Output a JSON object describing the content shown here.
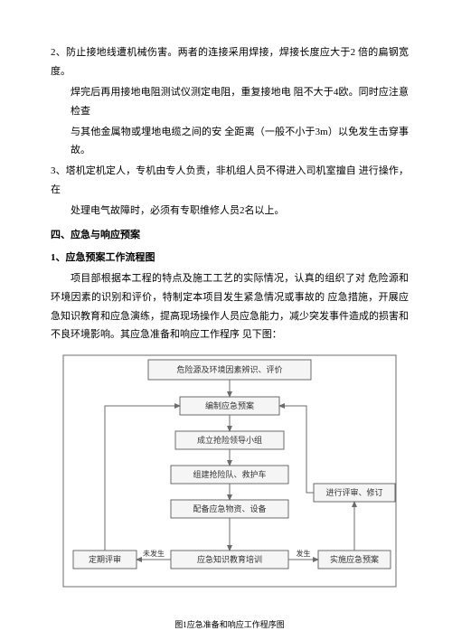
{
  "text": {
    "li2_a": "2、防止接地线遭机械伤害。两者的连接采用焊接，焊接长度应大于2 倍的扁钢宽度。",
    "li2_b": "焊完后再用接地电阻测试仪测定电阻，重复接地电 阻不大于4欧。同时应注意检查",
    "li2_c": "与其他金属物或埋地电缆之间的安 全距离（一般不小于3m）以免发生击穿事故。",
    "li3_a": "3、塔机定机定人，专机由专人负责，非机组人员不得进入司机室擅自 进行操作，在",
    "li3_b": "处理电气故障时，必须有专职维修人员2名以上。",
    "h4": "四、应急与响应预案",
    "h4_1": "1、应急预案工作流程图",
    "p1": "项目部根据本工程的特点及施工工艺的实际情况，认真的组织了对 危险源和环境因素的识别和评价，特制定本项目发生紧急情况或事故的 应急措施，开展应急知识教育和应急演练，提高现场操作人员应急能力，减少突发事件造成的损害和不良环境影响。其应急准备和响应工作程序 见下图：",
    "caption": "图1应急准备和响应工作程序图"
  },
  "flow": {
    "stroke": "#6b6b6b",
    "fill": "#f5f5f5",
    "text_color": "#333333",
    "arrow_fill": "#6b6b6b",
    "font_size": 9,
    "label_font_size": 8,
    "nodes": {
      "n1": "危险源及环境因素辨识、评价",
      "n2": "编制应急预案",
      "n3": "成立抢险领导小组",
      "n4": "组建抢险队、救护车",
      "n5": "配备应急物资、设备",
      "n6": "应急知识教育培训",
      "n7": "定期评审",
      "n8": "实施应急预案",
      "n9": "进行评审、修订"
    },
    "labels": {
      "l_left": "未发生",
      "l_right": "发生"
    }
  }
}
